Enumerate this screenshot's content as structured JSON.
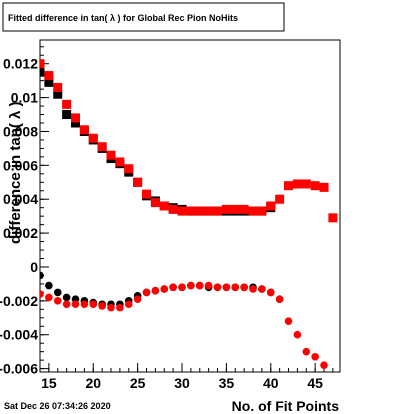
{
  "chart_data": {
    "type": "scatter",
    "title": "Fitted difference in tan( λ ) for Global Rec Pion NoHits",
    "xlabel": "No. of Fit Points",
    "ylabel": "difference in tan( λ )",
    "xlim": [
      14,
      47.8
    ],
    "ylim": [
      -0.0062,
      0.0134
    ],
    "x_ticks": [
      15,
      20,
      25,
      30,
      35,
      40,
      45
    ],
    "x_tick_labels": [
      "15",
      "20",
      "25",
      "30",
      "35",
      "40",
      "45"
    ],
    "y_ticks": [
      -0.006,
      -0.004,
      -0.002,
      0,
      0.002,
      0.004,
      0.006,
      0.008,
      0.01,
      0.012
    ],
    "y_tick_labels": [
      "-0.006",
      "-0.004",
      "-0.002",
      "0",
      "0.002",
      "0.004",
      "0.006",
      "0.008",
      "0.01",
      "0.012"
    ],
    "grid": false,
    "footer": "Sat Dec 26 07:34:26 2020",
    "series": [
      {
        "color": "#000000",
        "marker": "square",
        "x": [
          14,
          15,
          16,
          17,
          18,
          19,
          20,
          21,
          22,
          23,
          24,
          25,
          26,
          27,
          28,
          29,
          30,
          31,
          32,
          33,
          34,
          35,
          36,
          37,
          38,
          39,
          40
        ],
        "y": [
          0.0115,
          0.0109,
          0.0102,
          0.009,
          0.0085,
          0.008,
          0.0075,
          0.007,
          0.0064,
          0.0061,
          0.0056,
          0.005,
          0.0042,
          0.0039,
          0.0036,
          0.0035,
          0.0034,
          0.0033,
          0.0033,
          0.0033,
          0.0033,
          0.0033,
          0.0033,
          0.0033,
          0.0033,
          0.0033,
          0.0035
        ]
      },
      {
        "color": "#ff0000",
        "marker": "square",
        "x": [
          14,
          15,
          16,
          17,
          18,
          19,
          20,
          21,
          22,
          23,
          24,
          25,
          26,
          27,
          28,
          29,
          30,
          31,
          32,
          33,
          34,
          35,
          36,
          37,
          38,
          39,
          40,
          41,
          42,
          43,
          44,
          45,
          46,
          47
        ],
        "y": [
          0.012,
          0.0113,
          0.0106,
          0.0096,
          0.0088,
          0.0081,
          0.0076,
          0.0071,
          0.0066,
          0.0062,
          0.0058,
          0.005,
          0.0043,
          0.0038,
          0.0036,
          0.0034,
          0.0033,
          0.0033,
          0.0033,
          0.0033,
          0.0033,
          0.0034,
          0.0034,
          0.0034,
          0.0033,
          0.0033,
          0.0036,
          0.004,
          0.0048,
          0.0049,
          0.0049,
          0.0048,
          0.0047,
          0.0029
        ]
      },
      {
        "color": "#000000",
        "marker": "circle",
        "x": [
          14,
          15,
          16,
          17,
          18,
          19,
          20,
          21,
          22,
          23,
          24,
          25,
          26,
          27,
          28,
          29,
          30,
          31,
          32,
          33,
          34,
          35,
          36,
          37,
          38,
          39,
          40,
          41
        ],
        "y": [
          -0.0005,
          -0.0011,
          -0.0015,
          -0.0018,
          -0.0019,
          -0.002,
          -0.0021,
          -0.0022,
          -0.0022,
          -0.0022,
          -0.002,
          -0.0017,
          -0.0015,
          -0.0014,
          -0.0013,
          -0.0012,
          -0.0012,
          -0.0011,
          -0.0011,
          -0.0012,
          -0.0012,
          -0.0012,
          -0.0012,
          -0.0012,
          -0.0012,
          -0.0013,
          -0.0015,
          -0.0019
        ]
      },
      {
        "color": "#ff0000",
        "marker": "circle",
        "x": [
          14,
          15,
          16,
          17,
          18,
          19,
          20,
          21,
          22,
          23,
          24,
          25,
          26,
          27,
          28,
          29,
          30,
          31,
          32,
          33,
          34,
          35,
          36,
          37,
          38,
          39,
          40,
          41,
          42,
          43,
          44,
          45,
          46
        ],
        "y": [
          -0.0016,
          -0.0018,
          -0.002,
          -0.0022,
          -0.0022,
          -0.0022,
          -0.0022,
          -0.0023,
          -0.0024,
          -0.0024,
          -0.0022,
          -0.0019,
          -0.0015,
          -0.0014,
          -0.0013,
          -0.0012,
          -0.0012,
          -0.0011,
          -0.0011,
          -0.0011,
          -0.0012,
          -0.0012,
          -0.0012,
          -0.0012,
          -0.0013,
          -0.0013,
          -0.0015,
          -0.0019,
          -0.0032,
          -0.004,
          -0.005,
          -0.0053,
          -0.0058
        ]
      }
    ]
  }
}
